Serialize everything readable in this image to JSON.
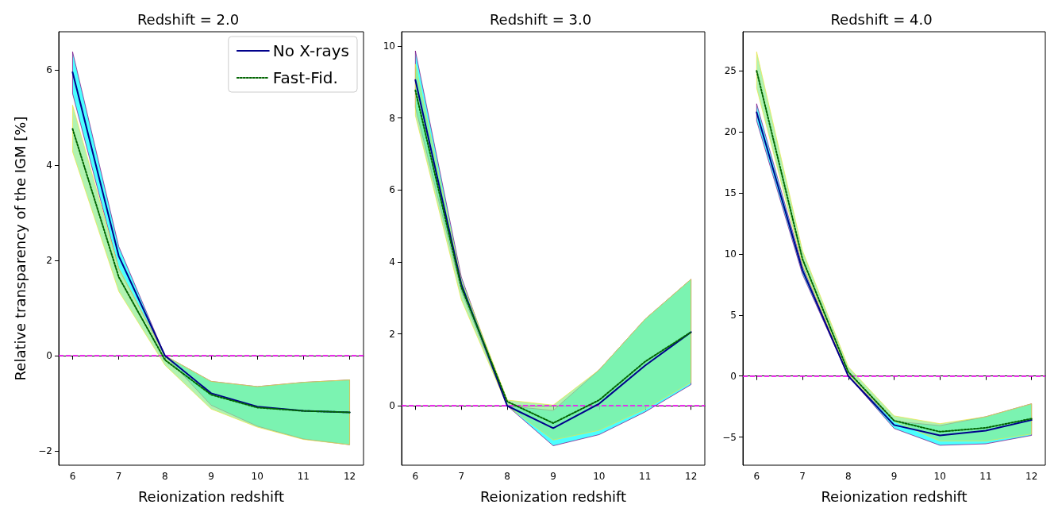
{
  "chart_data": [
    {
      "type": "line",
      "title": "Redshift = 2.0",
      "xlabel": "Reionization redshift",
      "ylabel": "Relative transparency of the IGM [%]",
      "x": [
        6,
        7,
        8,
        9,
        10,
        11,
        12
      ],
      "xlim": [
        5.7,
        12.3
      ],
      "xticks": [
        6,
        7,
        8,
        9,
        10,
        11,
        12
      ],
      "ylim": [
        -2.3,
        6.8
      ],
      "yticks": [
        {
          "value": -2,
          "label": "−2"
        },
        0,
        2,
        4,
        6
      ],
      "legend": "top right",
      "grid": false,
      "series": [
        {
          "name": "No X-rays",
          "color": "#00008b",
          "line_style": "solid",
          "values": [
            5.95,
            2.09,
            0,
            -0.79,
            -1.07,
            -1.16,
            -1.19
          ],
          "lower": [
            5.5,
            1.82,
            0,
            -1.04,
            -1.48,
            -1.75,
            -1.87
          ],
          "upper": [
            6.38,
            2.29,
            0,
            -0.54,
            -0.65,
            -0.56,
            -0.51
          ]
        },
        {
          "name": "Fast-Fid.",
          "color": "#006400",
          "line_style": "dotted",
          "values": [
            4.76,
            1.65,
            -0.09,
            -0.82,
            -1.09,
            -1.16,
            -1.19
          ],
          "lower": [
            4.28,
            1.35,
            -0.2,
            -1.12,
            -1.5,
            -1.76,
            -1.87
          ],
          "upper": [
            5.26,
            1.84,
            0,
            -0.54,
            -0.65,
            -0.56,
            -0.51
          ]
        }
      ],
      "ref_lines": [
        {
          "axis": "y",
          "value": 0,
          "color": "#ff00ff",
          "line_style": "dashed"
        }
      ]
    },
    {
      "type": "line",
      "title": "Redshift = 3.0",
      "xlabel": "Reionization redshift",
      "x": [
        6,
        7,
        8,
        9,
        10,
        11,
        12
      ],
      "xlim": [
        5.7,
        12.3
      ],
      "xticks": [
        6,
        7,
        8,
        9,
        10,
        11,
        12
      ],
      "ylim": [
        -1.65,
        10.4
      ],
      "yticks": [
        0,
        2,
        4,
        6,
        8,
        10
      ],
      "grid": false,
      "series": [
        {
          "color": "#00008b",
          "line_style": "solid",
          "values": [
            9.06,
            3.38,
            0,
            -0.62,
            0.06,
            1.12,
            2.05
          ],
          "lower": [
            8.3,
            3.19,
            0,
            -1.11,
            -0.8,
            -0.17,
            0.59
          ],
          "upper": [
            9.87,
            3.58,
            0,
            -0.13,
            1.0,
            2.41,
            3.52
          ]
        },
        {
          "color": "#006400",
          "line_style": "dotted",
          "values": [
            8.77,
            3.3,
            0.12,
            -0.48,
            0.16,
            1.23,
            2.05
          ],
          "lower": [
            8.07,
            2.95,
            0,
            -0.95,
            -0.68,
            -0.09,
            0.65
          ],
          "upper": [
            9.5,
            3.5,
            0.16,
            0.02,
            1.0,
            2.41,
            3.52
          ]
        }
      ],
      "ref_lines": [
        {
          "axis": "y",
          "value": 0,
          "color": "#ff00ff",
          "line_style": "dashed"
        }
      ]
    },
    {
      "type": "line",
      "title": "Redshift = 4.0",
      "xlabel": "Reionization redshift",
      "x": [
        6,
        7,
        8,
        9,
        10,
        11,
        12
      ],
      "xlim": [
        5.7,
        12.3
      ],
      "xticks": [
        6,
        7,
        8,
        9,
        10,
        11,
        12
      ],
      "ylim": [
        -7.3,
        28.2
      ],
      "yticks": [
        {
          "value": -5,
          "label": "−5"
        },
        0,
        5,
        10,
        15,
        20,
        25
      ],
      "grid": false,
      "series": [
        {
          "color": "#00008b",
          "line_style": "solid",
          "values": [
            21.6,
            8.67,
            0,
            -4.01,
            -4.86,
            -4.47,
            -3.6
          ],
          "lower": [
            20.9,
            8.33,
            0,
            -4.29,
            -5.67,
            -5.55,
            -4.86
          ],
          "upper": [
            22.3,
            9.0,
            0,
            -3.7,
            -4.06,
            -3.33,
            -2.27
          ]
        },
        {
          "color": "#006400",
          "line_style": "dotted",
          "values": [
            25.0,
            9.59,
            0.34,
            -3.65,
            -4.56,
            -4.24,
            -3.49
          ],
          "lower": [
            23.58,
            9.13,
            0.11,
            -3.7,
            -5.32,
            -5.32,
            -4.75
          ],
          "upper": [
            26.56,
            10.28,
            0.76,
            -3.26,
            -3.9,
            -3.33,
            -2.27
          ]
        }
      ],
      "ref_lines": [
        {
          "axis": "y",
          "value": 0,
          "color": "#ff00ff",
          "line_style": "dashed"
        }
      ]
    }
  ]
}
